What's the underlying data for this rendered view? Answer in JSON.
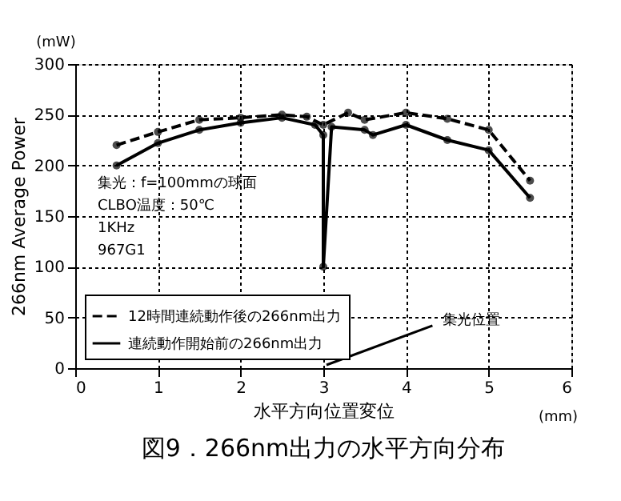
{
  "chart_data": {
    "type": "line",
    "title": "図9．266nm出力の水平方向分布",
    "xlabel": "水平方向位置変位",
    "ylabel": "266nm  Average  Power",
    "xlim": [
      0,
      6
    ],
    "xticks": [
      0,
      1,
      2,
      3,
      4,
      5,
      6
    ],
    "ylim": [
      0,
      300
    ],
    "yticks": [
      0,
      50,
      100,
      150,
      200,
      250,
      300
    ],
    "grid": true,
    "legend": "bottom left",
    "marker": "circle",
    "annotations": [
      "(mW)",
      "(mm)",
      "集光：f=100mmの球面",
      "CLBO温度：50℃",
      "1KHz",
      "967G1",
      "集光位置"
    ],
    "series": [
      {
        "name": "12時間連続動作後の266nm出力",
        "color": "#000000",
        "line_style": "dashed",
        "x": [
          0.5,
          1,
          1.5,
          2,
          2.5,
          2.8,
          3,
          3.3,
          3.5,
          4,
          4.5,
          5,
          5.5
        ],
        "values": [
          220,
          233,
          245,
          247,
          250,
          248,
          240,
          252,
          245,
          252,
          246,
          235,
          185
        ]
      },
      {
        "name": "連続動作開始前の266nm出力",
        "color": "#000000",
        "line_style": "solid",
        "x": [
          0.5,
          1,
          1.5,
          2,
          2.5,
          2.9,
          3,
          3,
          3.1,
          3.5,
          3.6,
          4,
          4.5,
          5,
          5.5
        ],
        "values": [
          200,
          222,
          235,
          242,
          247,
          240,
          230,
          100,
          238,
          235,
          230,
          240,
          225,
          215,
          168
        ]
      }
    ]
  }
}
